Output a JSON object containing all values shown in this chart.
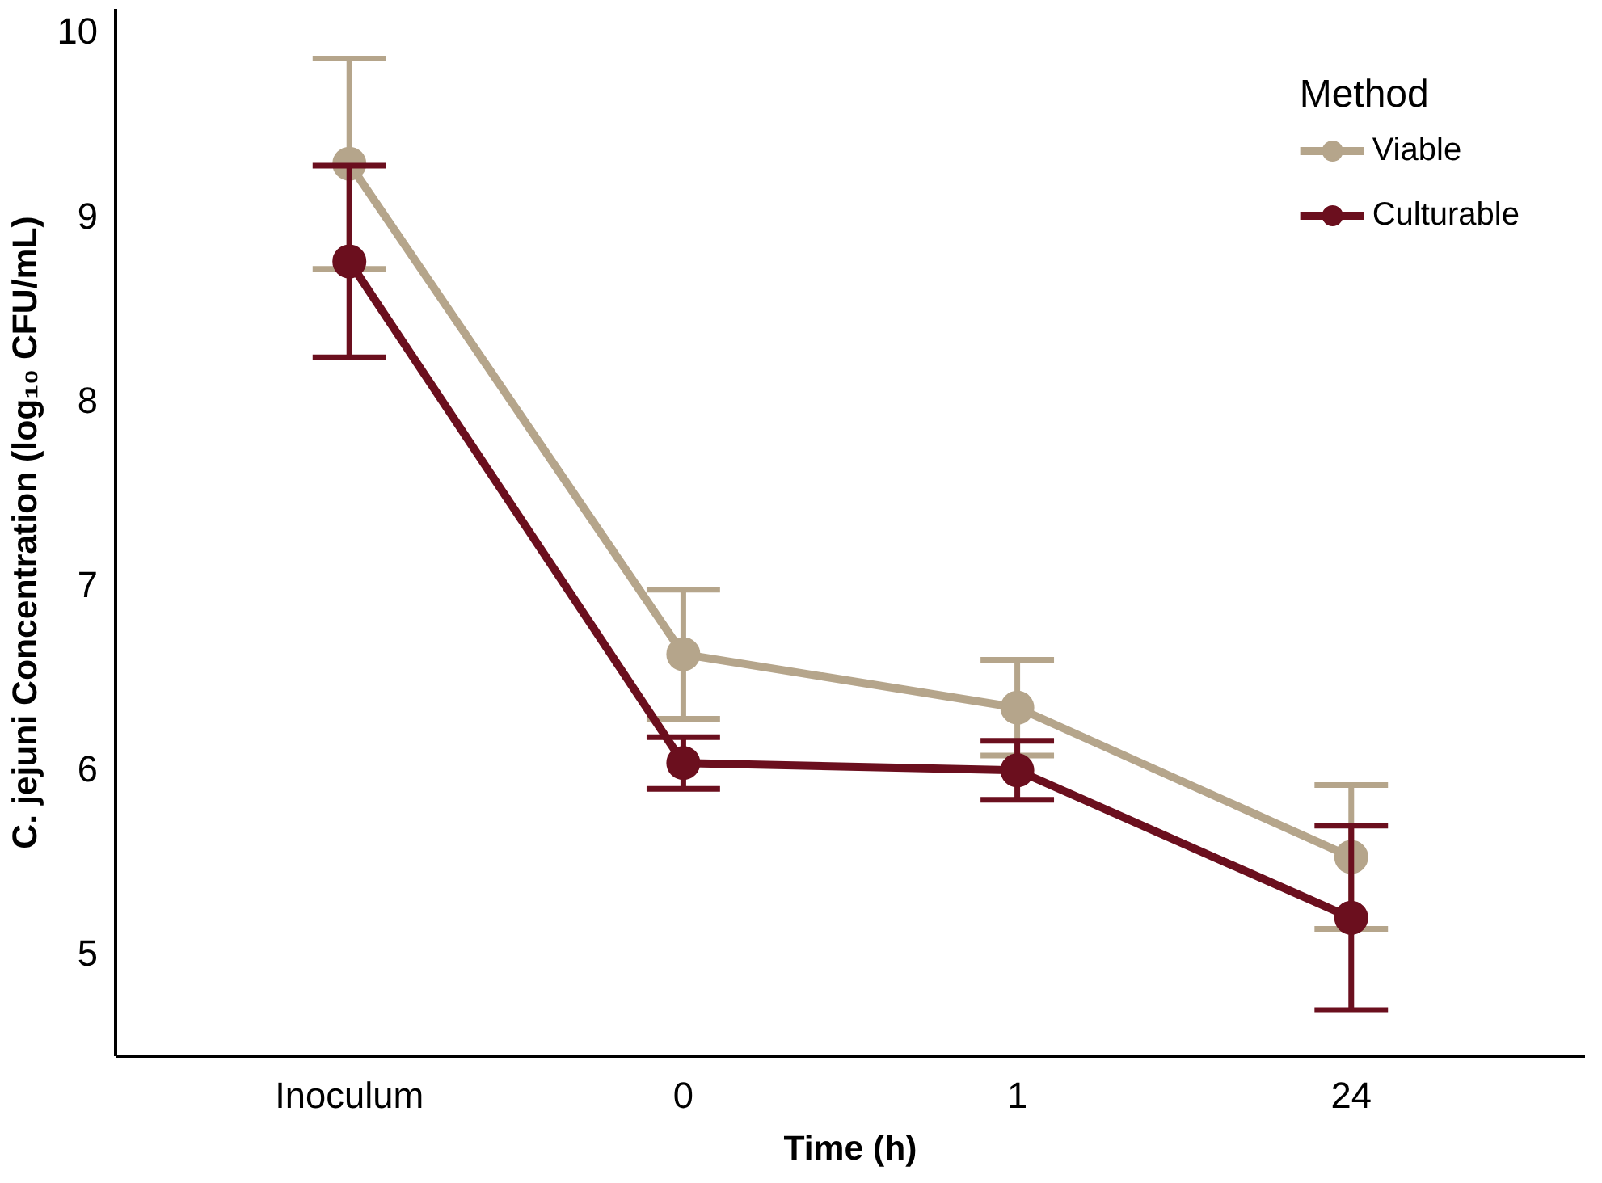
{
  "chart_data": {
    "type": "line",
    "xlabel": "Time (h)",
    "ylabel": "C. jejuni Concentration (log₁₀ CFU/mL)",
    "legend_title": "Method",
    "categories": [
      "Inoculum",
      "0",
      "1",
      "24"
    ],
    "series": [
      {
        "name": "Viable",
        "color": "#b5a58b",
        "values": [
          9.28,
          6.62,
          6.33,
          5.52
        ],
        "errors": [
          0.57,
          0.35,
          0.26,
          0.39
        ]
      },
      {
        "name": "Culturable",
        "color": "#6b0f1e",
        "values": [
          8.75,
          6.03,
          5.99,
          5.19
        ],
        "errors": [
          0.52,
          0.14,
          0.16,
          0.5
        ]
      }
    ],
    "ylim": [
      4.44,
      10.12
    ],
    "yticks": [
      5,
      6,
      7,
      8,
      9,
      10
    ],
    "grid": false,
    "legend": "top right",
    "marker": "circle",
    "line_style": "solid"
  }
}
